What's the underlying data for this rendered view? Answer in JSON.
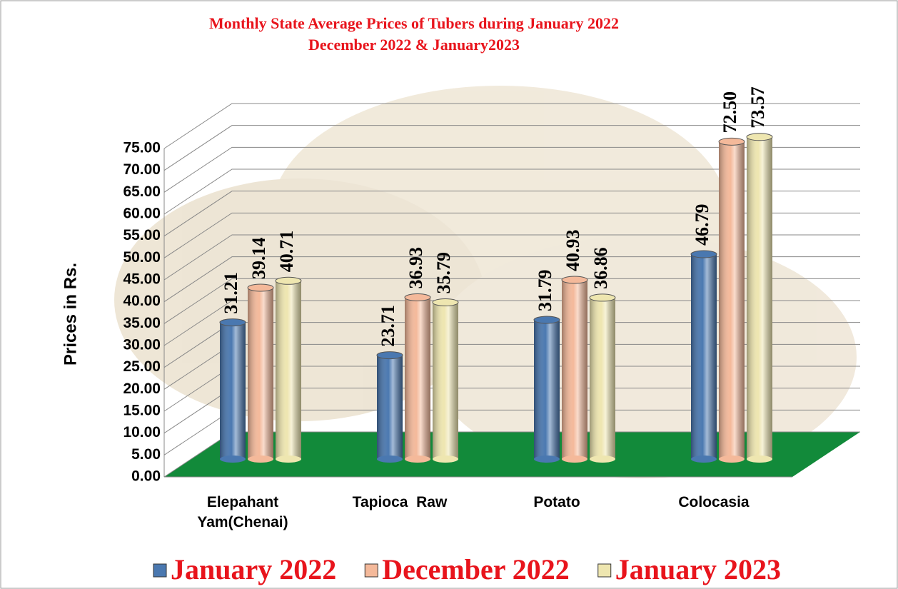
{
  "chart_data": {
    "type": "bar",
    "title": [
      "Monthly State Average  Prices of Tubers during  January 2022",
      "December 2022  &  January2023"
    ],
    "y_label": "Prices in Rs.",
    "categories": [
      "Elepahant Yam(Chenai)",
      "Tapioca  Raw",
      "Potato",
      "Colocasia"
    ],
    "series": [
      {
        "name": "January 2022",
        "color": "#4a78b0",
        "values": [
          31.21,
          23.71,
          31.79,
          46.79
        ],
        "value_labels": [
          "31.21",
          "23.71",
          "31.79",
          "46.79"
        ]
      },
      {
        "name": "December 2022",
        "color": "#f4b99a",
        "values": [
          39.14,
          36.93,
          40.93,
          72.5
        ],
        "value_labels": [
          "39.14",
          "36.93",
          "40.93",
          "72.50"
        ]
      },
      {
        "name": "January 2023",
        "color": "#eee6b0",
        "values": [
          40.71,
          35.79,
          36.86,
          73.57
        ],
        "value_labels": [
          "40.71",
          "35.79",
          "36.86",
          "73.57"
        ]
      }
    ],
    "ylim": [
      0,
      75
    ],
    "yticks": [
      {
        "value": 0,
        "label": "0.00"
      },
      {
        "value": 5,
        "label": "5.00"
      },
      {
        "value": 10,
        "label": "10.00"
      },
      {
        "value": 15,
        "label": "15.00"
      },
      {
        "value": 20,
        "label": "20.00"
      },
      {
        "value": 25,
        "label": "25.00"
      },
      {
        "value": 30,
        "label": "30.00"
      },
      {
        "value": 35,
        "label": "35.00"
      },
      {
        "value": 40,
        "label": "40.00"
      },
      {
        "value": 45,
        "label": "45.00"
      },
      {
        "value": 50,
        "label": "50.00"
      },
      {
        "value": 55,
        "label": "55.00"
      },
      {
        "value": 60,
        "label": "60.00"
      },
      {
        "value": 65,
        "label": "65.00"
      },
      {
        "value": 70,
        "label": "70.00"
      },
      {
        "value": 75,
        "label": "75.00"
      }
    ],
    "grid": true,
    "legend": "bottom"
  }
}
